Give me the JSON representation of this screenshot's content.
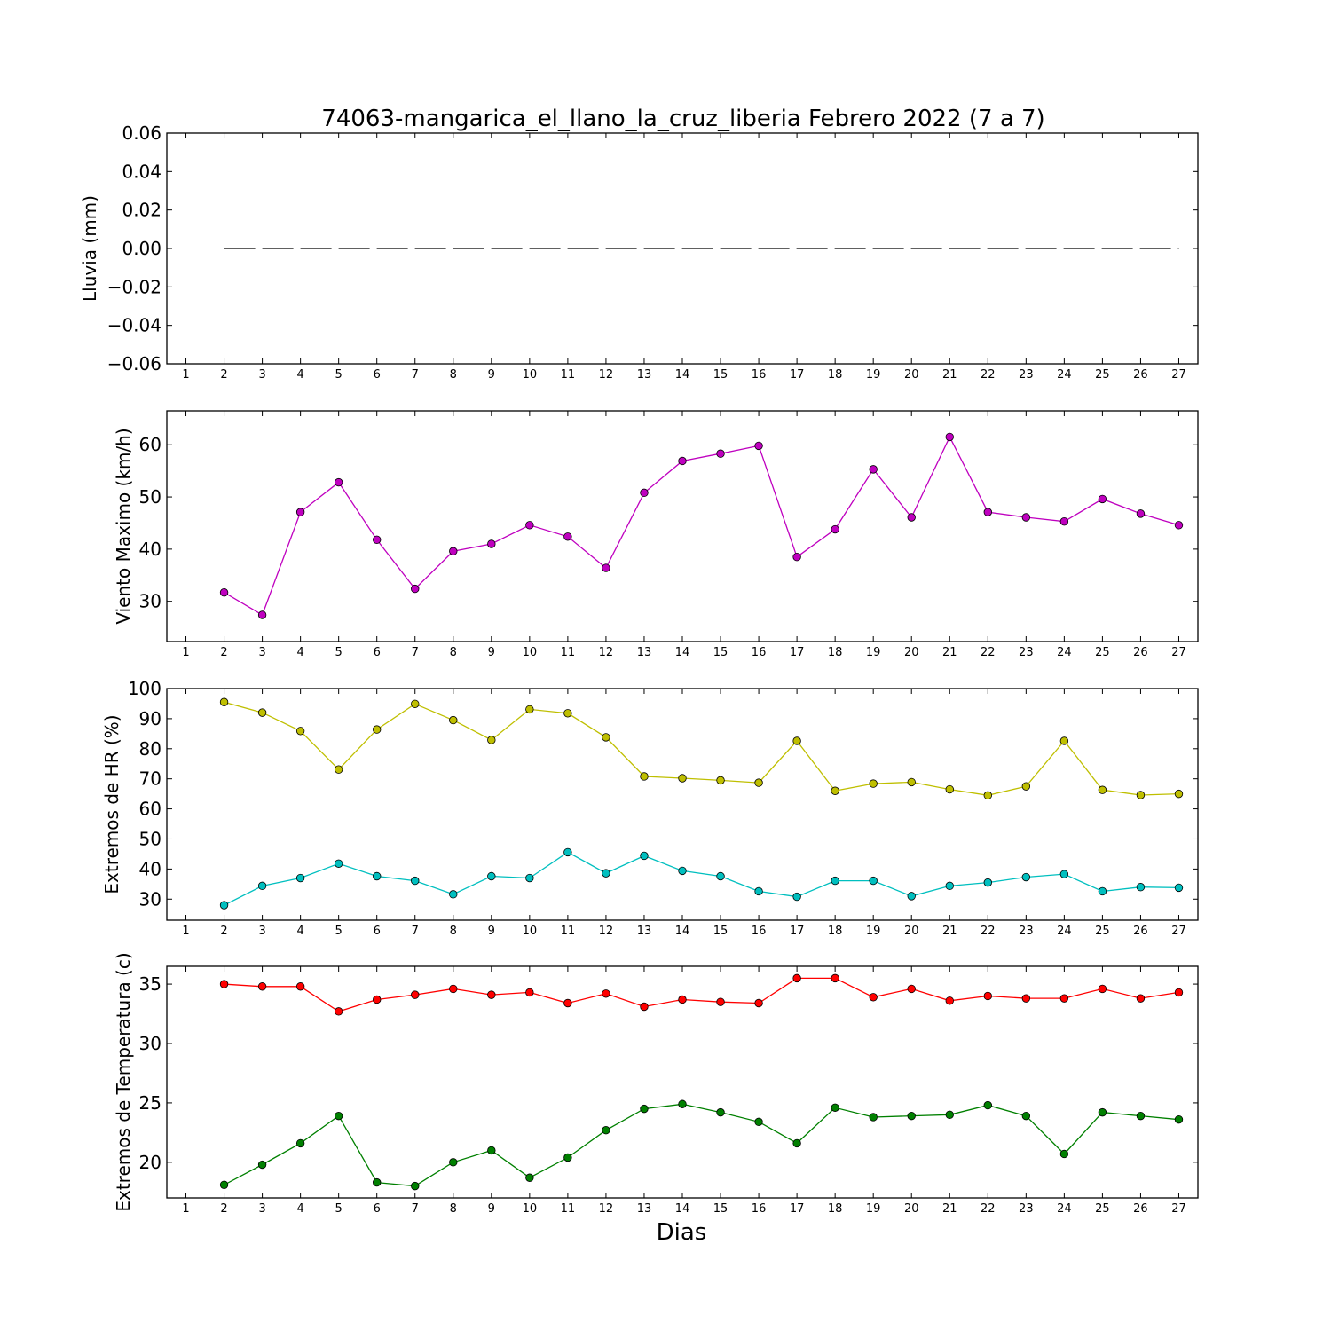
{
  "title": "74063-mangarica_el_llano_la_cruz_liberia Febrero 2022  (7 a 7)",
  "xlabel": "Dias",
  "chart_data": [
    {
      "type": "line",
      "ylabel": "Lluvia (mm)",
      "ylim": [
        -0.06,
        0.06
      ],
      "yticks": [
        0.06,
        0.04,
        0.02,
        0.0,
        -0.02,
        -0.04,
        -0.06
      ],
      "ytick_labels": [
        "0.06",
        "0.04",
        "0.02",
        "0.00",
        "−0.02",
        "−0.04",
        "−0.06"
      ],
      "x_ticks": [
        1,
        2,
        3,
        4,
        5,
        6,
        7,
        8,
        9,
        10,
        11,
        12,
        13,
        14,
        15,
        16,
        17,
        18,
        19,
        20,
        21,
        22,
        23,
        24,
        25,
        26,
        27
      ],
      "x": [
        2,
        3,
        4,
        5,
        6,
        7,
        8,
        9,
        10,
        11,
        12,
        13,
        14,
        15,
        16,
        17,
        18,
        19,
        20,
        21,
        22,
        23,
        24,
        25,
        26,
        27
      ],
      "series": [
        {
          "values": [
            0,
            0,
            0,
            0,
            0,
            0,
            0,
            0,
            0,
            0,
            0,
            0,
            0,
            0,
            0,
            0,
            0,
            0,
            0,
            0,
            0,
            0,
            0,
            0,
            0,
            0
          ],
          "color": "#000000",
          "style": "dashed",
          "marker": false
        }
      ]
    },
    {
      "type": "line",
      "ylabel": "Viento Maximo (km/h)",
      "ylim": [
        22.3,
        66.5
      ],
      "yticks": [
        30,
        40,
        50,
        60
      ],
      "ytick_labels": [
        "30",
        "40",
        "50",
        "60"
      ],
      "x_ticks": [
        1,
        2,
        3,
        4,
        5,
        6,
        7,
        8,
        9,
        10,
        11,
        12,
        13,
        14,
        15,
        16,
        17,
        18,
        19,
        20,
        21,
        22,
        23,
        24,
        25,
        26,
        27
      ],
      "x": [
        2,
        3,
        4,
        5,
        6,
        7,
        8,
        9,
        10,
        11,
        12,
        13,
        14,
        15,
        16,
        17,
        18,
        19,
        20,
        21,
        22,
        23,
        24,
        25,
        26,
        27
      ],
      "series": [
        {
          "values": [
            31.7,
            27.4,
            47.1,
            52.8,
            41.8,
            32.4,
            39.6,
            41.0,
            44.6,
            42.4,
            36.4,
            50.8,
            56.9,
            58.3,
            59.8,
            38.5,
            43.8,
            55.3,
            46.1,
            61.5,
            47.1,
            46.1,
            45.3,
            49.6,
            46.8,
            44.6
          ],
          "color": "#bf00bf",
          "marker": true
        }
      ]
    },
    {
      "type": "line",
      "ylabel": "Extremos de HR (%)",
      "ylim": [
        23,
        100
      ],
      "yticks": [
        30,
        40,
        50,
        60,
        70,
        80,
        90,
        100
      ],
      "ytick_labels": [
        "30",
        "40",
        "50",
        "60",
        "70",
        "80",
        "90",
        "100"
      ],
      "x_ticks": [
        1,
        2,
        3,
        4,
        5,
        6,
        7,
        8,
        9,
        10,
        11,
        12,
        13,
        14,
        15,
        16,
        17,
        18,
        19,
        20,
        21,
        22,
        23,
        24,
        25,
        26,
        27
      ],
      "x": [
        2,
        3,
        4,
        5,
        6,
        7,
        8,
        9,
        10,
        11,
        12,
        13,
        14,
        15,
        16,
        17,
        18,
        19,
        20,
        21,
        22,
        23,
        24,
        25,
        26,
        27
      ],
      "series": [
        {
          "values": [
            95.5,
            92.0,
            85.9,
            73.1,
            86.4,
            94.9,
            89.5,
            82.9,
            93.1,
            91.8,
            83.8,
            70.8,
            70.2,
            69.5,
            68.7,
            82.6,
            66.0,
            68.4,
            68.9,
            66.5,
            64.5,
            67.5,
            82.6,
            66.3,
            64.6,
            65.0
          ],
          "color": "#bfbf00",
          "marker": true
        },
        {
          "values": [
            28.0,
            34.4,
            37.0,
            41.8,
            37.6,
            36.1,
            31.6,
            37.6,
            37.0,
            45.6,
            38.6,
            44.4,
            39.4,
            37.6,
            32.6,
            30.8,
            36.1,
            36.1,
            31.0,
            34.4,
            35.5,
            37.3,
            38.3,
            32.6,
            34.0,
            33.8
          ],
          "color": "#00bfbf",
          "marker": true
        }
      ]
    },
    {
      "type": "line",
      "ylabel": "Extremos de Temperatura (c)",
      "ylim": [
        17.0,
        36.5
      ],
      "yticks": [
        20,
        25,
        30,
        35
      ],
      "ytick_labels": [
        "20",
        "25",
        "30",
        "35"
      ],
      "x_ticks": [
        1,
        2,
        3,
        4,
        5,
        6,
        7,
        8,
        9,
        10,
        11,
        12,
        13,
        14,
        15,
        16,
        17,
        18,
        19,
        20,
        21,
        22,
        23,
        24,
        25,
        26,
        27
      ],
      "x": [
        2,
        3,
        4,
        5,
        6,
        7,
        8,
        9,
        10,
        11,
        12,
        13,
        14,
        15,
        16,
        17,
        18,
        19,
        20,
        21,
        22,
        23,
        24,
        25,
        26,
        27
      ],
      "series": [
        {
          "values": [
            35.0,
            34.8,
            34.8,
            32.7,
            33.7,
            34.1,
            34.6,
            34.1,
            34.3,
            33.4,
            34.2,
            33.1,
            33.7,
            33.5,
            33.4,
            35.5,
            35.5,
            33.9,
            34.6,
            33.6,
            34.0,
            33.8,
            33.8,
            34.6,
            33.8,
            34.3
          ],
          "color": "#ff0000",
          "marker": true
        },
        {
          "values": [
            18.1,
            19.8,
            21.6,
            23.9,
            18.3,
            18.0,
            20.0,
            21.0,
            18.7,
            20.4,
            22.7,
            24.5,
            24.9,
            24.2,
            23.4,
            21.6,
            24.6,
            23.8,
            23.9,
            24.0,
            24.8,
            23.9,
            20.7,
            24.2,
            23.9,
            23.6
          ],
          "color": "#008000",
          "marker": true
        }
      ]
    }
  ]
}
